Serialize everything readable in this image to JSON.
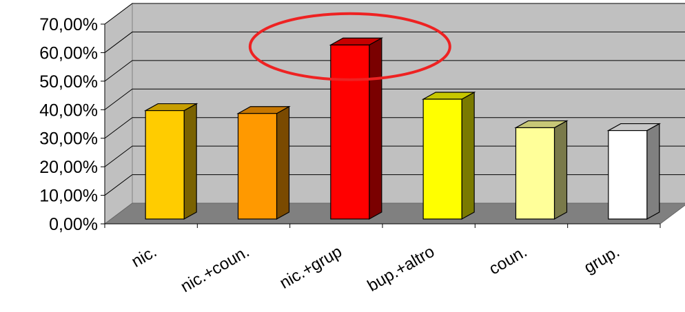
{
  "chart_data": {
    "type": "bar",
    "style": "3d-column",
    "categories": [
      "nic.",
      "nic.+coun.",
      "nic.+grup",
      "bup.+altro",
      "coun.",
      "grup."
    ],
    "values": [
      0.38,
      0.37,
      0.61,
      0.42,
      0.32,
      0.31
    ],
    "y_ticks": [
      "0,00%",
      "10,00%",
      "20,00%",
      "30,00%",
      "40,00%",
      "50,00%",
      "60,00%",
      "70,00%"
    ],
    "ylim": [
      0,
      0.7
    ],
    "grid": true,
    "legend": "none",
    "highlight": {
      "category": "nic.+grup",
      "shape": "ellipse",
      "color": "#ee2222"
    },
    "bar_colors": [
      {
        "front": "#ffcc00",
        "top": "#c79e00",
        "side": "#7a6200"
      },
      {
        "front": "#ff9900",
        "top": "#c77700",
        "side": "#7a4a00"
      },
      {
        "front": "#ff0000",
        "top": "#c70000",
        "side": "#7a0000"
      },
      {
        "front": "#ffff00",
        "top": "#c7c700",
        "side": "#7a7a00"
      },
      {
        "front": "#ffff99",
        "top": "#c7c777",
        "side": "#7a7a4a"
      },
      {
        "front": "#ffffff",
        "top": "#c7c7c7",
        "side": "#808080"
      }
    ],
    "wall_color": "#c0c0c0",
    "floor_color": "#808080",
    "gridline_color": "#000000"
  }
}
